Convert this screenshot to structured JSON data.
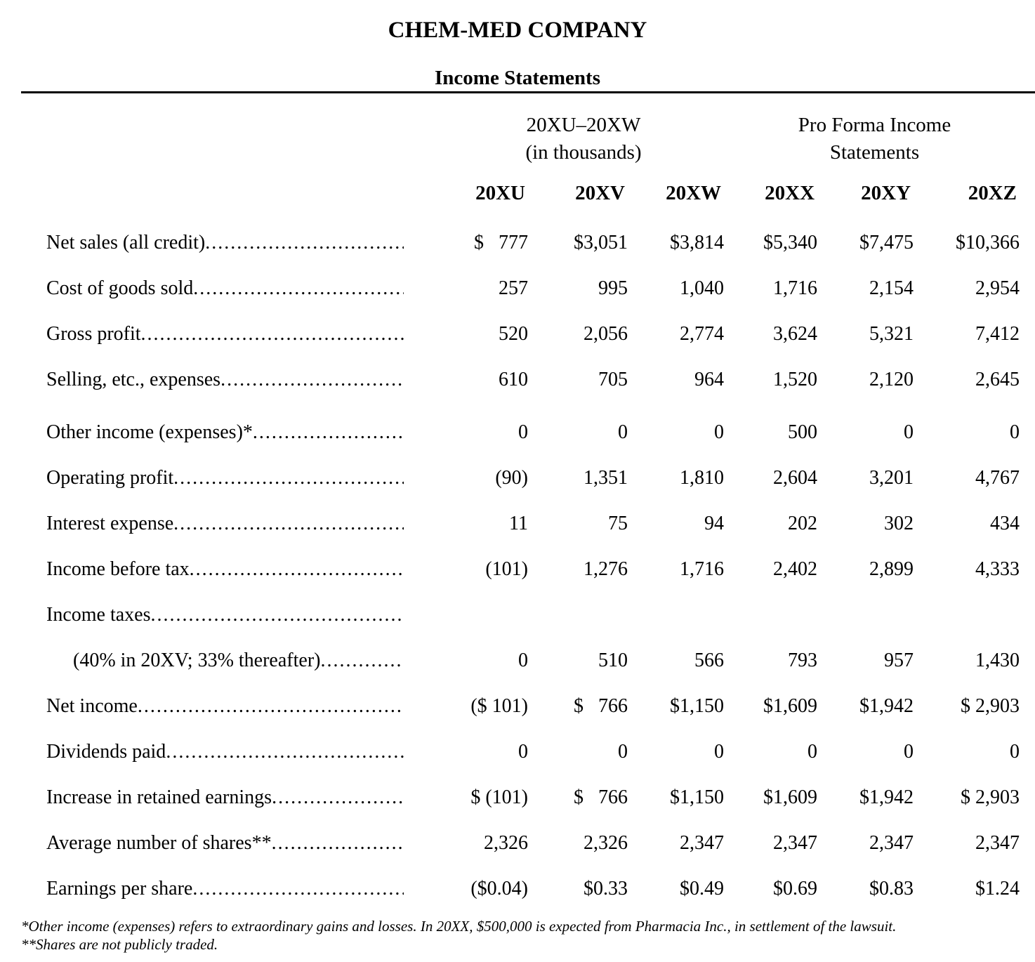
{
  "title": "CHEM-MED COMPANY",
  "subtitle": "Income Statements",
  "colors": {
    "text": "#000000",
    "background": "#ffffff",
    "rule": "#000000"
  },
  "table": {
    "group_headers": [
      {
        "line1": "20XU–20XW",
        "line2": "(in thousands)"
      },
      {
        "line1": "Pro Forma Income",
        "line2": "Statements"
      }
    ],
    "column_headers": [
      "20XU",
      "20XV",
      "20XW",
      "20XX",
      "20XY",
      "20XZ"
    ],
    "leader_dots": "........................................................................................................................",
    "rows": [
      {
        "label": "Net sales (all credit)",
        "indent": false,
        "spacer_before": false,
        "values": [
          "$   777",
          "$3,051",
          "$3,814",
          "$5,340",
          "$7,475",
          "$10,366"
        ]
      },
      {
        "label": "Cost of goods sold",
        "indent": false,
        "spacer_before": false,
        "values": [
          "257",
          "995",
          "1,040",
          "1,716",
          "2,154",
          "2,954"
        ]
      },
      {
        "label": "Gross profit",
        "indent": false,
        "spacer_before": false,
        "values": [
          "520",
          "2,056",
          "2,774",
          "3,624",
          "5,321",
          "7,412"
        ]
      },
      {
        "label": "Selling, etc., expenses",
        "indent": false,
        "spacer_before": false,
        "values": [
          "610",
          "705",
          "964",
          "1,520",
          "2,120",
          "2,645"
        ]
      },
      {
        "label": "Other income (expenses)*",
        "indent": false,
        "spacer_before": true,
        "values": [
          "0",
          "0",
          "0",
          "500",
          "0",
          "0"
        ]
      },
      {
        "label": "Operating profit",
        "indent": false,
        "spacer_before": false,
        "values": [
          "(90)",
          "1,351",
          "1,810",
          "2,604",
          "3,201",
          "4,767"
        ]
      },
      {
        "label": "Interest expense",
        "indent": false,
        "spacer_before": false,
        "values": [
          "11",
          "75",
          "94",
          "202",
          "302",
          "434"
        ]
      },
      {
        "label": "Income before tax",
        "indent": false,
        "spacer_before": false,
        "values": [
          "(101)",
          "1,276",
          "1,716",
          "2,402",
          "2,899",
          "4,333"
        ]
      },
      {
        "label": "Income taxes",
        "indent": false,
        "spacer_before": false,
        "values": [
          "",
          "",
          "",
          "",
          "",
          ""
        ]
      },
      {
        "label": "(40% in 20XV; 33% thereafter)",
        "indent": true,
        "spacer_before": false,
        "values": [
          "0",
          "510",
          "566",
          "793",
          "957",
          "1,430"
        ]
      },
      {
        "label": "Net income",
        "indent": false,
        "spacer_before": false,
        "values": [
          "($ 101)",
          "$   766",
          "$1,150",
          "$1,609",
          "$1,942",
          "$ 2,903"
        ]
      },
      {
        "label": "Dividends paid",
        "indent": false,
        "spacer_before": false,
        "values": [
          "0",
          "0",
          "0",
          "0",
          "0",
          "0"
        ]
      },
      {
        "label": "Increase in retained earnings",
        "indent": false,
        "spacer_before": false,
        "values": [
          "$ (101)",
          "$   766",
          "$1,150",
          "$1,609",
          "$1,942",
          "$ 2,903"
        ]
      },
      {
        "label": "Average number of shares**",
        "indent": false,
        "spacer_before": false,
        "values": [
          "2,326",
          "2,326",
          "2,347",
          "2,347",
          "2,347",
          "2,347"
        ]
      },
      {
        "label": "Earnings per share",
        "indent": false,
        "spacer_before": false,
        "values": [
          "($0.04)",
          "$0.33",
          "$0.49",
          "$0.69",
          "$0.83",
          "$1.24"
        ]
      }
    ]
  },
  "footnotes": [
    "*Other income (expenses) refers to extraordinary gains and losses. In 20XX, $500,000 is expected from Pharmacia Inc., in settlement of the lawsuit.",
    "**Shares are not publicly traded."
  ]
}
